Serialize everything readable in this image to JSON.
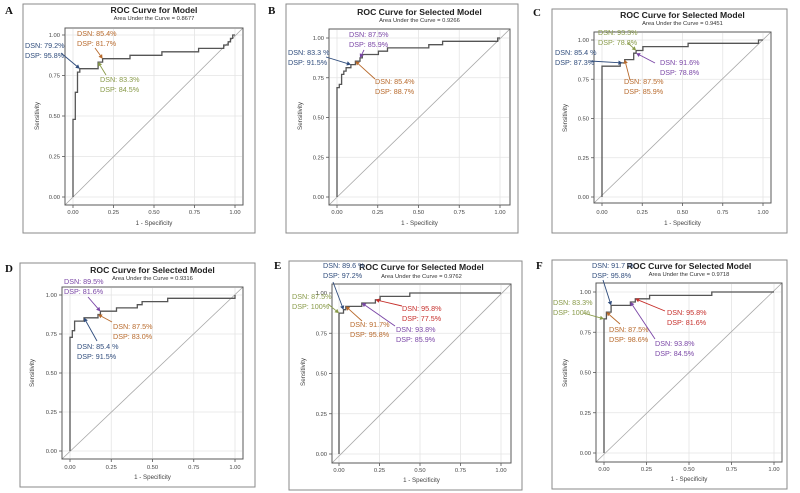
{
  "chart_data": [
    {
      "panel_label": "A",
      "type": "line",
      "title": "ROC Curve for Model",
      "subtitle": "Area Under the Curve = 0.8677",
      "auc": 0.8677,
      "xlabel": "1 - Specificity",
      "ylabel": "Sensitivity",
      "xlim": [
        0,
        1
      ],
      "ylim": [
        0,
        1
      ],
      "xticks": [
        "0.00",
        "0.25",
        "0.50",
        "0.75",
        "1.00"
      ],
      "yticks": [
        "0.00",
        "0.25",
        "0.50",
        "0.75",
        "1.00"
      ],
      "grid": true,
      "reference_line": "diagonal y = x",
      "roc_curve": {
        "x": [
          0,
          0,
          0.014,
          0.014,
          0.028,
          0.028,
          0.042,
          0.042,
          0.155,
          0.155,
          0.183,
          0.183,
          0.352,
          0.352,
          0.549,
          0.549,
          0.775,
          0.775,
          0.93,
          0.93,
          0.958,
          0.958,
          0.972,
          0.972,
          0.986,
          0.986,
          1
        ],
        "y": [
          0,
          0.479,
          0.479,
          0.646,
          0.646,
          0.771,
          0.771,
          0.792,
          0.792,
          0.833,
          0.833,
          0.854,
          0.854,
          0.875,
          0.875,
          0.896,
          0.896,
          0.917,
          0.917,
          0.938,
          0.938,
          0.958,
          0.958,
          0.979,
          0.979,
          1,
          1
        ]
      },
      "cutpoints": [
        {
          "dsn_label": "DSN: 79.2%",
          "dsp_label": "DSP: 95.8%",
          "sensitivity": 79.2,
          "specificity": 95.8,
          "color": "#2f4c7c"
        },
        {
          "dsn_label": "DSN: 85.4%",
          "dsp_label": "DSP: 81.7%",
          "sensitivity": 85.4,
          "specificity": 81.7,
          "color": "#b86a2c"
        },
        {
          "dsn_label": "DSN: 83.3%",
          "dsp_label": "DSP: 84.5%",
          "sensitivity": 83.3,
          "specificity": 84.5,
          "color": "#889a48"
        }
      ]
    },
    {
      "panel_label": "B",
      "type": "line",
      "title": "ROC Curve for Selected Model",
      "subtitle": "Area Under the Curve = 0.9266",
      "auc": 0.9266,
      "xlabel": "1 - Specificity",
      "ylabel": "Sensitivity",
      "xlim": [
        0,
        1
      ],
      "ylim": [
        0,
        1
      ],
      "xticks": [
        "0.00",
        "0.25",
        "0.50",
        "0.75",
        "1.00"
      ],
      "yticks": [
        "0.00",
        "0.25",
        "0.50",
        "0.75",
        "1.00"
      ],
      "grid": true,
      "reference_line": "diagonal y = x",
      "roc_curve": {
        "x": [
          0,
          0,
          0.014,
          0.014,
          0.028,
          0.028,
          0.042,
          0.042,
          0.056,
          0.056,
          0.085,
          0.085,
          0.113,
          0.113,
          0.141,
          0.141,
          0.155,
          0.155,
          0.254,
          0.254,
          0.31,
          0.31,
          0.563,
          0.563,
          0.648,
          0.648,
          0.986,
          0.986,
          1
        ],
        "y": [
          0,
          0.688,
          0.688,
          0.708,
          0.708,
          0.771,
          0.771,
          0.792,
          0.792,
          0.813,
          0.813,
          0.833,
          0.833,
          0.854,
          0.854,
          0.875,
          0.875,
          0.896,
          0.896,
          0.917,
          0.917,
          0.938,
          0.938,
          0.958,
          0.958,
          0.979,
          0.979,
          1,
          1
        ]
      },
      "cutpoints": [
        {
          "dsn_label": "DSN: 87.5%",
          "dsp_label": "DSP: 85.9%",
          "sensitivity": 87.5,
          "specificity": 85.9,
          "color": "#7a46a6"
        },
        {
          "dsn_label": "DSN: 83.3 %",
          "dsp_label": "DSP: 91.5%",
          "sensitivity": 83.3,
          "specificity": 91.5,
          "color": "#2f4c7c"
        },
        {
          "dsn_label": "DSN: 85.4%",
          "dsp_label": "DSP: 88.7%",
          "sensitivity": 85.4,
          "specificity": 88.7,
          "color": "#b86a2c"
        }
      ]
    },
    {
      "panel_label": "C",
      "type": "line",
      "title": "ROC Curve for Selected Model",
      "subtitle": "Area Under the Curve = 0.9451",
      "auc": 0.9451,
      "xlabel": "1 - Specificity",
      "ylabel": "Sensitivity",
      "xlim": [
        0,
        1
      ],
      "ylim": [
        0,
        1
      ],
      "xticks": [
        "0.00",
        "0.25",
        "0.50",
        "0.75",
        "1.00"
      ],
      "yticks": [
        "0.00",
        "0.25",
        "0.50",
        "0.75",
        "1.00"
      ],
      "grid": true,
      "reference_line": "diagonal y = x",
      "roc_curve": {
        "x": [
          0,
          0,
          0.113,
          0.113,
          0.141,
          0.141,
          0.197,
          0.197,
          0.212,
          0.212,
          0.254,
          0.254,
          0.535,
          0.535,
          0.972,
          0.972,
          1
        ],
        "y": [
          0,
          0.833,
          0.833,
          0.854,
          0.854,
          0.875,
          0.875,
          0.916,
          0.916,
          0.933,
          0.933,
          0.958,
          0.958,
          0.979,
          0.979,
          1,
          1
        ]
      },
      "cutpoints": [
        {
          "dsn_label": "DSN: 93.3%",
          "dsp_label": "DSP: 78.8%",
          "sensitivity": 93.3,
          "specificity": 78.8,
          "color": "#889a48"
        },
        {
          "dsn_label": "DSN: 85.4 %",
          "dsp_label": "DSP: 87.3%",
          "sensitivity": 85.4,
          "specificity": 87.3,
          "color": "#2f4c7c"
        },
        {
          "dsn_label": "DSN: 91.6%",
          "dsp_label": "DSP: 78.8%",
          "sensitivity": 91.6,
          "specificity": 78.8,
          "color": "#7a46a6"
        },
        {
          "dsn_label": "DSN: 87.5%",
          "dsp_label": "DSP: 85.9%",
          "sensitivity": 87.5,
          "specificity": 85.9,
          "color": "#b86a2c"
        }
      ]
    },
    {
      "panel_label": "D",
      "type": "line",
      "title": "ROC Curve for Selected Model",
      "subtitle": "Area Under the Curve = 0.9316",
      "auc": 0.9316,
      "xlabel": "1 - Specificity",
      "ylabel": "Sensitivity",
      "xlim": [
        0,
        1
      ],
      "ylim": [
        0,
        1
      ],
      "xticks": [
        "0.00",
        "0.25",
        "0.50",
        "0.75",
        "1.00"
      ],
      "yticks": [
        "0.00",
        "0.25",
        "0.50",
        "0.75",
        "1.00"
      ],
      "grid": true,
      "reference_line": "diagonal y = x",
      "roc_curve": {
        "x": [
          0,
          0,
          0.014,
          0.014,
          0.028,
          0.028,
          0.085,
          0.085,
          0.17,
          0.17,
          0.184,
          0.184,
          0.282,
          0.282,
          0.408,
          0.408,
          0.437,
          0.437,
          0.592,
          0.592,
          1,
          1
        ],
        "y": [
          0,
          0.729,
          0.729,
          0.771,
          0.771,
          0.833,
          0.833,
          0.854,
          0.854,
          0.875,
          0.875,
          0.896,
          0.896,
          0.917,
          0.917,
          0.938,
          0.938,
          0.958,
          0.958,
          0.979,
          0.979,
          1
        ]
      },
      "cutpoints": [
        {
          "dsn_label": "DSN: 89.5%",
          "dsp_label": "DSP: 81.6%",
          "sensitivity": 89.5,
          "specificity": 81.6,
          "color": "#7a46a6"
        },
        {
          "dsn_label": "DSN: 87.5%",
          "dsp_label": "DSP: 83.0%",
          "sensitivity": 87.5,
          "specificity": 83.0,
          "color": "#b86a2c"
        },
        {
          "dsn_label": "DSN: 85.4 %",
          "dsp_label": "DSP: 91.5%",
          "sensitivity": 85.4,
          "specificity": 91.5,
          "color": "#2f4c7c"
        }
      ]
    },
    {
      "panel_label": "E",
      "type": "line",
      "title": "ROC Curve for Selected Model",
      "subtitle": "Area Under the Curve = 0.9762",
      "auc": 0.9762,
      "xlabel": "1 - Specificity",
      "ylabel": "Sensitivity",
      "xlim": [
        0,
        1
      ],
      "ylim": [
        0,
        1
      ],
      "xticks": [
        "0.00",
        "0.25",
        "0.50",
        "0.75",
        "1.00"
      ],
      "yticks": [
        "0.00",
        "0.25",
        "0.50",
        "0.75",
        "1.00"
      ],
      "grid": true,
      "reference_line": "diagonal y = x",
      "roc_curve": {
        "x": [
          0,
          0,
          0.028,
          0.028,
          0.042,
          0.042,
          0.141,
          0.141,
          0.225,
          0.225,
          0.254,
          0.254,
          0.437,
          0.437,
          1
        ],
        "y": [
          0,
          0.875,
          0.875,
          0.896,
          0.896,
          0.917,
          0.917,
          0.938,
          0.938,
          0.958,
          0.958,
          0.979,
          0.979,
          1,
          1
        ]
      },
      "cutpoints": [
        {
          "dsn_label": "DSN: 89.6 %",
          "dsp_label": "DSP: 97.2%",
          "sensitivity": 89.6,
          "specificity": 97.2,
          "color": "#2f4c7c"
        },
        {
          "dsn_label": "DSN: 87.5%",
          "dsp_label": "DSP: 100%",
          "sensitivity": 87.5,
          "specificity": 100,
          "color": "#889a48"
        },
        {
          "dsn_label": "DSN: 91.7%",
          "dsp_label": "DSP: 95.8%",
          "sensitivity": 91.7,
          "specificity": 95.8,
          "color": "#b86a2c"
        },
        {
          "dsn_label": "DSN: 93.8%",
          "dsp_label": "DSP: 85.9%",
          "sensitivity": 93.8,
          "specificity": 85.9,
          "color": "#7a46a6"
        },
        {
          "dsn_label": "DSN: 95.8%",
          "dsp_label": "DSP: 77.5%",
          "sensitivity": 95.8,
          "specificity": 77.5,
          "color": "#c62f2b"
        }
      ]
    },
    {
      "panel_label": "F",
      "type": "line",
      "title": "ROC Curve for Selected Model",
      "subtitle": "Area Under the Curve = 0.9718",
      "auc": 0.9718,
      "xlabel": "1 - Specificity",
      "ylabel": "Sensitivity",
      "xlim": [
        0,
        1
      ],
      "ylim": [
        0,
        1
      ],
      "xticks": [
        "0.00",
        "0.25",
        "0.50",
        "0.75",
        "1.00"
      ],
      "yticks": [
        "0.00",
        "0.25",
        "0.50",
        "0.75",
        "1.00"
      ],
      "grid": true,
      "reference_line": "diagonal y = x",
      "roc_curve": {
        "x": [
          0,
          0,
          0.014,
          0.014,
          0.042,
          0.042,
          0.155,
          0.155,
          0.184,
          0.184,
          0.268,
          0.268,
          0.634,
          0.634,
          1
        ],
        "y": [
          0,
          0.833,
          0.833,
          0.875,
          0.875,
          0.917,
          0.917,
          0.938,
          0.938,
          0.958,
          0.958,
          0.979,
          0.979,
          1,
          1
        ]
      },
      "cutpoints": [
        {
          "dsn_label": "DSN: 91.7 %",
          "dsp_label": "DSP: 95.8%",
          "sensitivity": 91.7,
          "specificity": 95.8,
          "color": "#2f4c7c"
        },
        {
          "dsn_label": "DSN: 83.3%",
          "dsp_label": "DSP: 100%",
          "sensitivity": 83.3,
          "specificity": 100,
          "color": "#889a48"
        },
        {
          "dsn_label": "DSN: 87.5%",
          "dsp_label": "DSP: 98.6%",
          "sensitivity": 87.5,
          "specificity": 98.6,
          "color": "#b86a2c"
        },
        {
          "dsn_label": "DSN: 93.8%",
          "dsp_label": "DSP: 84.5%",
          "sensitivity": 93.8,
          "specificity": 84.5,
          "color": "#7a46a6"
        },
        {
          "dsn_label": "DSN: 95.8%",
          "dsp_label": "DSP: 81.6%",
          "sensitivity": 95.8,
          "specificity": 81.6,
          "color": "#c62f2b"
        }
      ]
    }
  ]
}
